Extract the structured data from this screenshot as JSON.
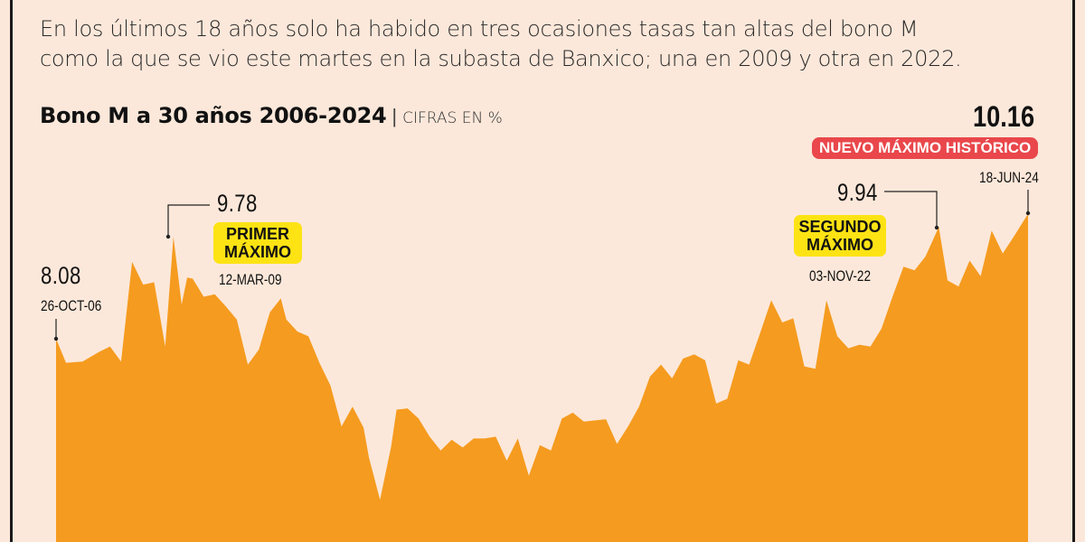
{
  "intro": {
    "line1": "En los últimos 18 años solo ha habido en tres ocasiones tasas tan altas del bono M",
    "line2": "como la que se vio este martes en la subasta de Banxico; una en 2009 y otra en 2022."
  },
  "title": {
    "main": "Bono M a 30 años 2006-2024",
    "separator": "|",
    "unit": "CIFRAS EN %"
  },
  "annotations": {
    "start": {
      "value": "8.08",
      "date": "26-OCT-06"
    },
    "first_max": {
      "value": "9.78",
      "label_line1": "PRIMER",
      "label_line2": "MÁXIMO",
      "date": "12-MAR-09"
    },
    "second_max": {
      "value": "9.94",
      "label_line1": "SEGUNDO",
      "label_line2": "MÁXIMO",
      "date": "03-NOV-22"
    },
    "record": {
      "value": "10.16",
      "label": "NUEVO MÁXIMO HISTÓRICO",
      "date": "18-JUN-24"
    }
  },
  "colors": {
    "background": "#fce8da",
    "area": "#f59b1f",
    "badge_yellow": "#fde314",
    "badge_red": "#e9474b",
    "text": "#111111"
  },
  "chart_data": {
    "type": "area",
    "title": "Bono M a 30 años 2006-2024",
    "subtitle": "CIFRAS EN %",
    "xlabel": "",
    "ylabel": "%",
    "x_range": [
      "2006-10-26",
      "2024-06-18"
    ],
    "grid": false,
    "legend": "none",
    "ylim": [
      4.7,
      10.5
    ],
    "x": [
      2006.82,
      2007.0,
      2007.3,
      2007.6,
      2007.8,
      2008.0,
      2008.2,
      2008.4,
      2008.6,
      2008.8,
      2008.95,
      2009.1,
      2009.2,
      2009.3,
      2009.5,
      2009.7,
      2009.9,
      2010.1,
      2010.3,
      2010.5,
      2010.7,
      2010.9,
      2011.0,
      2011.2,
      2011.4,
      2011.6,
      2011.8,
      2012.0,
      2012.2,
      2012.4,
      2012.5,
      2012.7,
      2012.9,
      2013.0,
      2013.2,
      2013.4,
      2013.6,
      2013.8,
      2014.0,
      2014.2,
      2014.4,
      2014.6,
      2014.8,
      2015.0,
      2015.2,
      2015.4,
      2015.6,
      2015.8,
      2016.0,
      2016.2,
      2016.4,
      2016.6,
      2016.8,
      2017.0,
      2017.2,
      2017.4,
      2017.6,
      2017.8,
      2018.0,
      2018.2,
      2018.4,
      2018.6,
      2018.8,
      2019.0,
      2019.2,
      2019.4,
      2019.6,
      2019.8,
      2020.0,
      2020.2,
      2020.4,
      2020.6,
      2020.8,
      2021.0,
      2021.2,
      2021.4,
      2021.6,
      2021.8,
      2022.0,
      2022.2,
      2022.4,
      2022.6,
      2022.84,
      2023.0,
      2023.2,
      2023.4,
      2023.6,
      2023.8,
      2024.0,
      2024.2,
      2024.46
    ],
    "values": [
      8.08,
      7.68,
      7.7,
      7.86,
      7.95,
      7.7,
      9.36,
      8.98,
      9.02,
      7.95,
      9.78,
      8.65,
      9.1,
      9.08,
      8.78,
      8.82,
      8.62,
      8.4,
      7.65,
      7.9,
      8.52,
      8.75,
      8.4,
      8.2,
      8.12,
      7.68,
      7.3,
      6.62,
      6.95,
      6.6,
      6.1,
      5.4,
      6.28,
      6.9,
      6.92,
      6.75,
      6.45,
      6.22,
      6.4,
      6.27,
      6.42,
      6.42,
      6.45,
      6.05,
      6.42,
      5.8,
      6.31,
      6.22,
      6.75,
      6.85,
      6.7,
      6.72,
      6.74,
      6.33,
      6.62,
      6.95,
      7.45,
      7.65,
      7.42,
      7.75,
      7.82,
      7.72,
      7.0,
      7.08,
      7.72,
      7.65,
      8.18,
      8.72,
      8.35,
      8.42,
      7.62,
      7.58,
      8.72,
      8.12,
      7.92,
      7.98,
      7.95,
      8.25,
      8.78,
      9.28,
      9.22,
      9.45,
      9.94,
      9.05,
      8.95,
      9.38,
      9.12,
      9.88,
      9.5,
      9.78,
      10.16
    ]
  }
}
